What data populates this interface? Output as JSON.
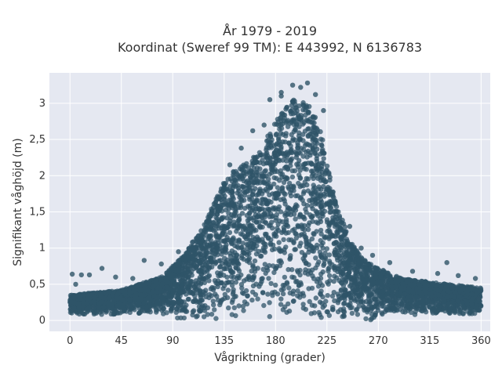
{
  "chart_data": {
    "type": "scatter",
    "title": "År 1979 - 2019",
    "subtitle": "Koordinat (Sweref 99 TM): E 443992, N 6136783",
    "xlabel": "Vågriktning (grader)",
    "ylabel": "Signifikant våghöjd (m)",
    "xlim": [
      -18,
      368
    ],
    "ylim": [
      -0.15,
      3.42
    ],
    "xticks": [
      0,
      45,
      90,
      135,
      180,
      225,
      270,
      315,
      360
    ],
    "xtick_labels": [
      "0",
      "45",
      "90",
      "135",
      "180",
      "225",
      "270",
      "315",
      "360"
    ],
    "yticks": [
      0,
      0.5,
      1,
      1.5,
      2,
      2.5,
      3
    ],
    "ytick_labels": [
      "0",
      "0,5",
      "1",
      "1,5",
      "2",
      "2,5",
      "3"
    ],
    "grid": true,
    "marker_color": "#2f5468",
    "plot_bg_color": "#e5e8f1",
    "density_profile": [
      {
        "x": 0,
        "y": 0.35
      },
      {
        "x": 45,
        "y": 0.42
      },
      {
        "x": 80,
        "y": 0.6
      },
      {
        "x": 100,
        "y": 0.9
      },
      {
        "x": 120,
        "y": 1.4
      },
      {
        "x": 135,
        "y": 1.95
      },
      {
        "x": 150,
        "y": 2.15
      },
      {
        "x": 165,
        "y": 2.3
      },
      {
        "x": 180,
        "y": 2.75
      },
      {
        "x": 195,
        "y": 3.05
      },
      {
        "x": 210,
        "y": 3.0
      },
      {
        "x": 220,
        "y": 2.6
      },
      {
        "x": 230,
        "y": 1.8
      },
      {
        "x": 245,
        "y": 1.1
      },
      {
        "x": 260,
        "y": 0.8
      },
      {
        "x": 290,
        "y": 0.58
      },
      {
        "x": 320,
        "y": 0.52
      },
      {
        "x": 360,
        "y": 0.45
      }
    ],
    "outliers": [
      {
        "x": 2,
        "y": 0.64
      },
      {
        "x": 5,
        "y": 0.5
      },
      {
        "x": 10,
        "y": 0.63
      },
      {
        "x": 17,
        "y": 0.63
      },
      {
        "x": 28,
        "y": 0.72
      },
      {
        "x": 40,
        "y": 0.6
      },
      {
        "x": 55,
        "y": 0.58
      },
      {
        "x": 65,
        "y": 0.83
      },
      {
        "x": 80,
        "y": 0.78
      },
      {
        "x": 95,
        "y": 0.95
      },
      {
        "x": 130,
        "y": 1.55
      },
      {
        "x": 140,
        "y": 2.15
      },
      {
        "x": 150,
        "y": 2.38
      },
      {
        "x": 160,
        "y": 2.62
      },
      {
        "x": 170,
        "y": 2.7
      },
      {
        "x": 175,
        "y": 3.05
      },
      {
        "x": 185,
        "y": 3.1
      },
      {
        "x": 185,
        "y": 3.15
      },
      {
        "x": 195,
        "y": 3.25
      },
      {
        "x": 202,
        "y": 3.22
      },
      {
        "x": 208,
        "y": 3.28
      },
      {
        "x": 215,
        "y": 3.12
      },
      {
        "x": 222,
        "y": 2.9
      },
      {
        "x": 245,
        "y": 1.3
      },
      {
        "x": 255,
        "y": 1.0
      },
      {
        "x": 265,
        "y": 0.9
      },
      {
        "x": 280,
        "y": 0.8
      },
      {
        "x": 300,
        "y": 0.68
      },
      {
        "x": 322,
        "y": 0.65
      },
      {
        "x": 330,
        "y": 0.8
      },
      {
        "x": 340,
        "y": 0.62
      },
      {
        "x": 355,
        "y": 0.58
      },
      {
        "x": 358,
        "y": 0.3
      }
    ]
  }
}
